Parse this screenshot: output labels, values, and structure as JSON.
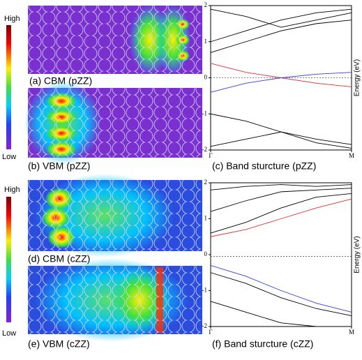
{
  "panels": {
    "a": "(a)  CBM (pZZ)",
    "b": "(b) VBM (pZZ)",
    "d": "(d) CBM (cZZ)",
    "e": "(e) VBM (cZZ)"
  },
  "colorbar": {
    "high": "High",
    "low": "Low"
  },
  "chart_data": [
    {
      "type": "line",
      "title": "(c) Band sturcture (pZZ)",
      "ylabel": "Energy (eV)",
      "x": [
        0,
        0.25,
        0.5,
        0.75,
        1
      ],
      "xlim": [
        0,
        1
      ],
      "xticks": [
        {
          "value": 0,
          "label": "Γ"
        },
        {
          "value": 1,
          "label": "M"
        }
      ],
      "ylim": [
        -2,
        2
      ],
      "yticks": [
        -2,
        -1,
        0,
        1,
        2
      ],
      "fermi_level": 0,
      "series": [
        {
          "color": "#000000",
          "values": [
            1.0,
            1.3,
            1.6,
            1.8,
            1.9
          ]
        },
        {
          "color": "#000000",
          "values": [
            1.9,
            1.7,
            1.4,
            1.6,
            1.8
          ]
        },
        {
          "color": "#000000",
          "values": [
            0.7,
            1.0,
            1.3,
            1.5,
            1.6
          ]
        },
        {
          "color": "#000000",
          "values": [
            -1.0,
            -1.2,
            -1.5,
            -1.7,
            -1.85
          ]
        },
        {
          "color": "#000000",
          "values": [
            -1.9,
            -1.7,
            -1.5,
            -1.8,
            -1.95
          ]
        },
        {
          "color": "#e03030",
          "values": [
            0.4,
            0.15,
            0.0,
            -0.15,
            -0.25
          ]
        },
        {
          "color": "#3040e0",
          "values": [
            -0.4,
            -0.15,
            0.0,
            0.1,
            0.15
          ]
        }
      ]
    },
    {
      "type": "line",
      "title": "(f) Band sturcture (cZZ)",
      "ylabel": "Energy (eV)",
      "x": [
        0,
        0.25,
        0.5,
        0.75,
        1
      ],
      "xlim": [
        0,
        1
      ],
      "xticks": [
        {
          "value": 0,
          "label": "Γ"
        },
        {
          "value": 1,
          "label": "M"
        }
      ],
      "ylim": [
        -2,
        2
      ],
      "yticks": [
        -2,
        -1,
        0,
        1,
        2
      ],
      "fermi_level": -0.05,
      "series": [
        {
          "color": "#000000",
          "values": [
            0.6,
            0.9,
            1.3,
            1.6,
            1.7
          ]
        },
        {
          "color": "#000000",
          "values": [
            1.2,
            1.5,
            1.75,
            1.8,
            1.85
          ]
        },
        {
          "color": "#000000",
          "values": [
            1.8,
            1.9,
            1.95,
            1.9,
            1.95
          ]
        },
        {
          "color": "#000000",
          "values": [
            -0.5,
            -0.8,
            -1.2,
            -1.5,
            -1.7
          ]
        },
        {
          "color": "#000000",
          "values": [
            -1.3,
            -1.6,
            -1.9,
            -2.0,
            -2.0
          ]
        },
        {
          "color": "#e03030",
          "values": [
            0.5,
            0.7,
            1.0,
            1.3,
            1.55
          ]
        },
        {
          "color": "#3040e0",
          "values": [
            -0.3,
            -0.6,
            -1.0,
            -1.35,
            -1.6
          ]
        }
      ]
    }
  ]
}
